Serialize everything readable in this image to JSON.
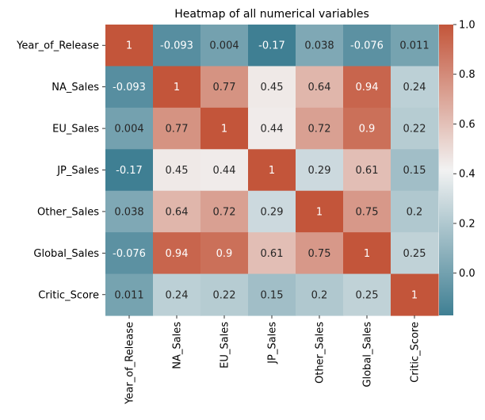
{
  "chart_data": {
    "type": "heatmap",
    "title": "Heatmap of all numerical variables",
    "xlabel": "",
    "ylabel": "",
    "row_labels": [
      "Year_of_Release",
      "NA_Sales",
      "EU_Sales",
      "JP_Sales",
      "Other_Sales",
      "Global_Sales",
      "Critic_Score"
    ],
    "col_labels": [
      "Year_of_Release",
      "NA_Sales",
      "EU_Sales",
      "JP_Sales",
      "Other_Sales",
      "Global_Sales",
      "Critic_Score"
    ],
    "values": [
      [
        1,
        -0.093,
        0.004,
        -0.17,
        0.038,
        -0.076,
        0.011
      ],
      [
        -0.093,
        1,
        0.77,
        0.45,
        0.64,
        0.94,
        0.24
      ],
      [
        0.004,
        0.77,
        1,
        0.44,
        0.72,
        0.9,
        0.22
      ],
      [
        -0.17,
        0.45,
        0.44,
        1,
        0.29,
        0.61,
        0.15
      ],
      [
        0.038,
        0.64,
        0.72,
        0.29,
        1,
        0.75,
        0.2
      ],
      [
        -0.076,
        0.94,
        0.9,
        0.61,
        0.75,
        1,
        0.25
      ],
      [
        0.011,
        0.24,
        0.22,
        0.15,
        0.2,
        0.25,
        1
      ]
    ],
    "value_labels": [
      [
        "1",
        "-0.093",
        "0.004",
        "-0.17",
        "0.038",
        "-0.076",
        "0.011"
      ],
      [
        "-0.093",
        "1",
        "0.77",
        "0.45",
        "0.64",
        "0.94",
        "0.24"
      ],
      [
        "0.004",
        "0.77",
        "1",
        "0.44",
        "0.72",
        "0.9",
        "0.22"
      ],
      [
        "-0.17",
        "0.45",
        "0.44",
        "1",
        "0.29",
        "0.61",
        "0.15"
      ],
      [
        "0.038",
        "0.64",
        "0.72",
        "0.29",
        "1",
        "0.75",
        "0.2"
      ],
      [
        "-0.076",
        "0.94",
        "0.9",
        "0.61",
        "0.75",
        "1",
        "0.25"
      ],
      [
        "0.011",
        "0.24",
        "0.22",
        "0.15",
        "0.2",
        "0.25",
        "1"
      ]
    ],
    "colorbar": {
      "vmin": -0.17,
      "vmax": 1.0,
      "ticks": [
        0.0,
        0.2,
        0.4,
        0.6,
        0.8,
        1.0
      ],
      "tick_labels": [
        "0.0",
        "0.2",
        "0.4",
        "0.6",
        "0.8",
        "1.0"
      ]
    },
    "colors": {
      "low": "#3f7f93",
      "mid": "#f2f2f2",
      "high": "#c3553a",
      "text_dark": "#262626",
      "text_light": "#ffffff"
    }
  }
}
